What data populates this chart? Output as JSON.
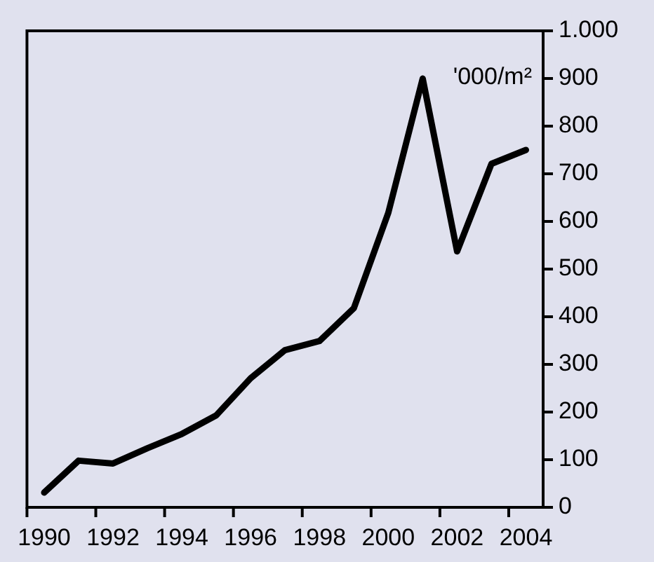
{
  "chart_data": {
    "type": "line",
    "categories": [
      "1990",
      null,
      "1992",
      null,
      "1994",
      null,
      "1996",
      null,
      "1998",
      null,
      "2000",
      null,
      "2002",
      null,
      "2004"
    ],
    "series": [
      {
        "color": "#000000",
        "values": [
          31,
          98,
          92,
          124,
          154,
          193,
          271,
          330,
          349,
          418,
          618,
          900,
          537,
          721,
          750
        ]
      }
    ],
    "ylim": [
      0,
      1000
    ],
    "yticks": [
      0,
      100,
      200,
      300,
      400,
      500,
      600,
      700,
      800,
      900,
      {
        "value": 1000,
        "label": "1.000"
      }
    ],
    "annotations": [
      "'000/m²"
    ],
    "grid": false,
    "legend": false,
    "marker": "none",
    "line_style": "solid"
  }
}
